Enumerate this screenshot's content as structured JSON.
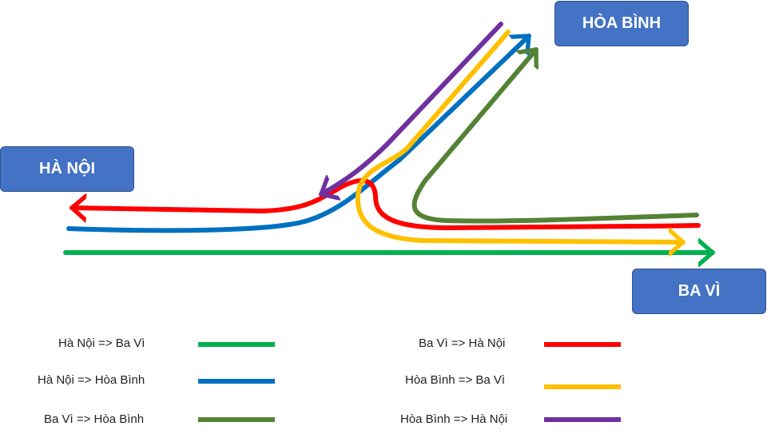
{
  "cities": {
    "hanoi": "HÀ NỘI",
    "hoabinh": "HÒA BÌNH",
    "bavi": "BA VÌ"
  },
  "routes": [
    {
      "id": "hn-bv",
      "label": "Hà Nội => Ba Vì",
      "color": "#00B050"
    },
    {
      "id": "hn-hb",
      "label": "Hà Nội => Hòa Bình",
      "color": "#0070C0"
    },
    {
      "id": "bv-hb",
      "label": "Ba Vì => Hòa Bình",
      "color": "#548235"
    },
    {
      "id": "bv-hn",
      "label": "Ba Vì => Hà Nội",
      "color": "#FF0000"
    },
    {
      "id": "hb-bv",
      "label": "Hòa Bình => Ba Vì",
      "color": "#FFC000"
    },
    {
      "id": "hb-hn",
      "label": "Hòa Bình => Hà Nội",
      "color": "#7030A0"
    }
  ]
}
